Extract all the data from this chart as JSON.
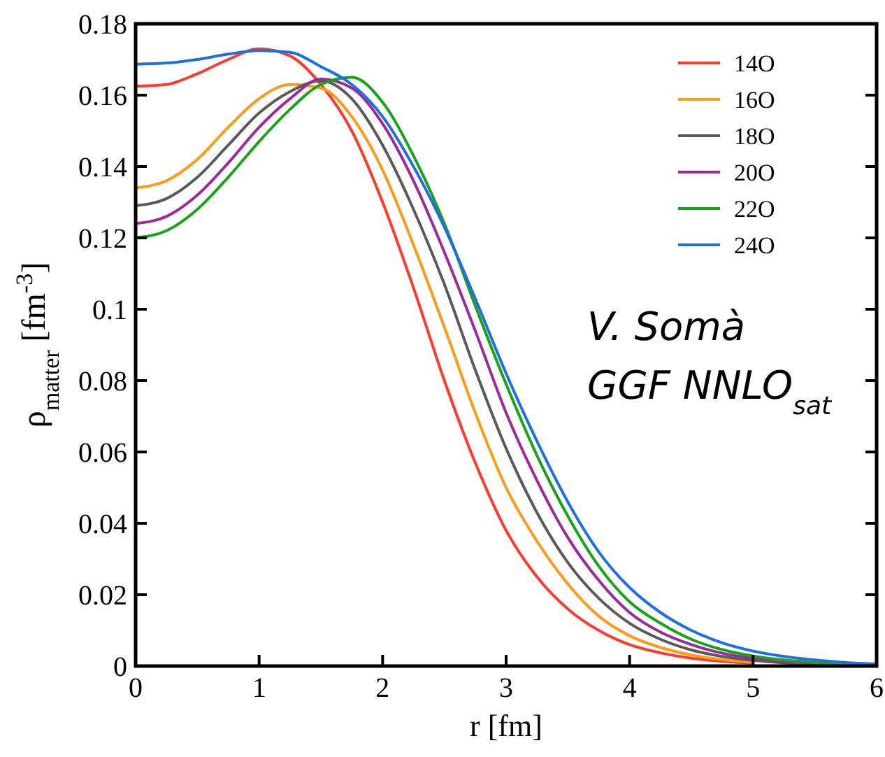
{
  "chart_data": {
    "type": "line",
    "xlabel": "r [fm]",
    "ylabel": "ρ$_{matter}$ [fm$^{-3}$]",
    "x": [
      0,
      0.25,
      0.5,
      0.75,
      1,
      1.25,
      1.5,
      1.75,
      2,
      2.25,
      2.5,
      2.75,
      3,
      3.25,
      3.5,
      3.75,
      4,
      4.25,
      4.5,
      4.75,
      5,
      5.25,
      5.5,
      5.75,
      6
    ],
    "series": [
      {
        "name": "14O",
        "color": "#ff3b30",
        "values": [
          0.1625,
          0.163,
          0.166,
          0.17,
          0.173,
          0.171,
          0.163,
          0.15,
          0.13,
          0.106,
          0.08,
          0.057,
          0.038,
          0.025,
          0.016,
          0.01,
          0.006,
          0.0037,
          0.0022,
          0.0013,
          0.0008,
          null,
          null,
          null,
          null
        ]
      },
      {
        "name": "16O",
        "color": "#ff9a1a",
        "values": [
          0.134,
          0.136,
          0.142,
          0.151,
          0.159,
          0.163,
          0.162,
          0.154,
          0.139,
          0.118,
          0.095,
          0.071,
          0.05,
          0.035,
          0.023,
          0.014,
          0.0085,
          0.0052,
          0.0031,
          0.0018,
          0.0011,
          null,
          null,
          null,
          null
        ]
      },
      {
        "name": "18O",
        "color": "#5a5a5a",
        "values": [
          0.129,
          0.131,
          0.137,
          0.146,
          0.155,
          0.161,
          0.164,
          0.159,
          0.146,
          0.128,
          0.107,
          0.083,
          0.061,
          0.043,
          0.029,
          0.019,
          0.012,
          0.0075,
          0.0045,
          0.0027,
          0.0016,
          0.0009,
          0.0005,
          0.0003,
          0.0002
        ]
      },
      {
        "name": "20O",
        "color": "#9b2b9b",
        "values": [
          0.124,
          0.126,
          0.132,
          0.141,
          0.151,
          0.159,
          0.1645,
          0.162,
          0.152,
          0.136,
          0.116,
          0.094,
          0.071,
          0.052,
          0.036,
          0.024,
          0.015,
          0.0095,
          0.006,
          0.0036,
          0.0022,
          0.0013,
          0.0007,
          0.0004,
          0.0002
        ]
      },
      {
        "name": "22O",
        "color": "#1aa31a",
        "values": [
          0.12,
          0.122,
          0.128,
          0.137,
          0.147,
          0.156,
          0.163,
          0.165,
          0.158,
          0.143,
          0.124,
          0.101,
          0.079,
          0.059,
          0.042,
          0.028,
          0.018,
          0.012,
          0.0075,
          0.0046,
          0.0028,
          0.0017,
          0.001,
          0.0006,
          0.0003
        ]
      },
      {
        "name": "24O",
        "color": "#1f6fe0",
        "values": [
          0.1687,
          0.169,
          0.17,
          0.1715,
          0.1725,
          0.172,
          0.168,
          0.163,
          0.154,
          0.14,
          0.123,
          0.103,
          0.082,
          0.063,
          0.046,
          0.032,
          0.022,
          0.015,
          0.01,
          0.0065,
          0.0042,
          0.0027,
          0.0017,
          0.001,
          0.0006
        ]
      }
    ],
    "xlim": [
      0,
      6
    ],
    "xticks": [
      0,
      1,
      2,
      3,
      4,
      5,
      6
    ],
    "ylim": [
      0,
      0.18
    ],
    "yticks": [
      0,
      0.02,
      0.04,
      0.06,
      0.08,
      0.1,
      0.12,
      0.14,
      0.16,
      0.18
    ],
    "grid": false,
    "legend": "top right",
    "marker": "none",
    "line_style": "solid",
    "annotations": [
      "V. Somà",
      "GGF NNLO$_{sat}$"
    ]
  }
}
